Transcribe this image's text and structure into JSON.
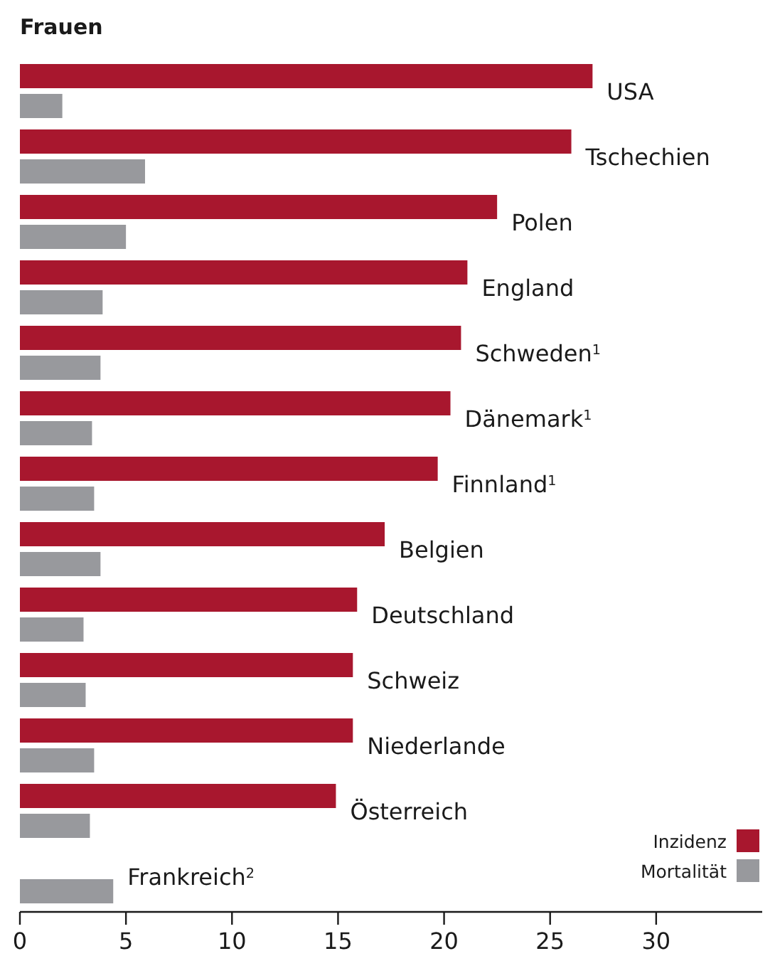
{
  "chart_data": {
    "type": "bar",
    "orientation": "horizontal",
    "title": "Frauen",
    "categories": [
      "USA",
      "Tschechien",
      "Polen",
      "England",
      "Schweden$^{1}$",
      "Dänemark$^{1}$",
      "Finnland$^{1}$",
      "Belgien",
      "Deutschland",
      "Schweiz",
      "Niederlande",
      "Österreich",
      "Frankreich$^{2}$"
    ],
    "series": [
      {
        "name": "Inzidenz",
        "color": "#a8172e",
        "values": [
          27.0,
          26.0,
          22.5,
          21.1,
          20.8,
          20.3,
          19.7,
          17.2,
          15.9,
          15.7,
          15.7,
          14.9,
          null
        ]
      },
      {
        "name": "Mortalität",
        "color": "#98999d",
        "values": [
          2.0,
          5.9,
          5.0,
          3.9,
          3.8,
          3.4,
          3.5,
          3.8,
          3.0,
          3.1,
          3.5,
          3.3,
          4.4
        ]
      }
    ],
    "xlim": [
      0,
      35
    ],
    "xticks": [
      0,
      5,
      10,
      15,
      20,
      25,
      30
    ],
    "grid": false,
    "legend": "bottom right"
  }
}
